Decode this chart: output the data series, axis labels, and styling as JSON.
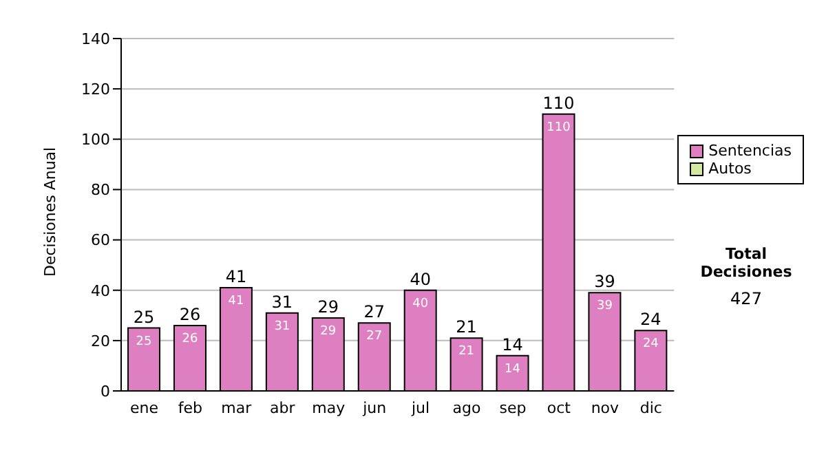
{
  "chart_data": {
    "type": "bar",
    "ylabel": "Decisiones Anual",
    "categories": [
      "ene",
      "feb",
      "mar",
      "abr",
      "may",
      "jun",
      "jul",
      "ago",
      "sep",
      "oct",
      "nov",
      "dic"
    ],
    "series": [
      {
        "name": "Sentencias",
        "color": "#dd7fc0",
        "values": [
          25,
          26,
          41,
          31,
          29,
          27,
          40,
          21,
          14,
          110,
          39,
          24
        ],
        "value_labels": [
          "25",
          "26",
          "41",
          "31",
          "29",
          "27",
          "40",
          "21",
          "14",
          "110",
          "39",
          "24"
        ]
      },
      {
        "name": "Autos",
        "color": "#d6e8a0",
        "values": [
          0,
          0,
          0,
          0,
          0,
          0,
          0,
          0,
          0,
          0,
          0,
          0
        ]
      }
    ],
    "stacked": true,
    "totals": [
      "25",
      "26",
      "41",
      "31",
      "29",
      "27",
      "40",
      "21",
      "14",
      "110",
      "39",
      "24"
    ],
    "ylim": [
      0,
      140
    ],
    "yticks": [
      0,
      20,
      40,
      60,
      80,
      100,
      120,
      140
    ],
    "grid": "y",
    "legend": "right",
    "annotations": [
      "Total Decisiones",
      "427"
    ]
  }
}
